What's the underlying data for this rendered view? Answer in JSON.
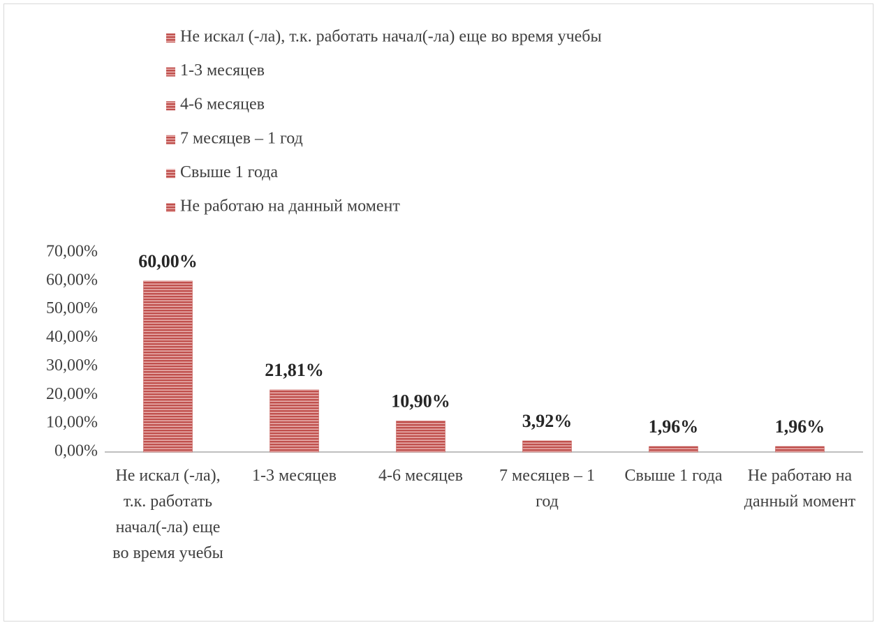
{
  "chart_data": {
    "type": "bar",
    "categories": [
      "Не искал (-ла), т.к. работать начал(-ла) еще во время учебы",
      "1-3 месяцев",
      "4-6 месяцев",
      "7 месяцев – 1 год",
      "Свыше 1 года",
      "Не работаю на данный момент"
    ],
    "values": [
      60,
      21.81,
      10.9,
      3.92,
      1.96,
      1.96
    ],
    "value_labels": [
      "60,00%",
      "21,81%",
      "10,90%",
      "3,92%",
      "1,96%",
      "1,96%"
    ],
    "color": "#c0504d",
    "ylim": [
      0,
      70
    ],
    "yticks": [
      {
        "value": 0,
        "label": "0,00%"
      },
      {
        "value": 10,
        "label": "10,00%"
      },
      {
        "value": 20,
        "label": "20,00%"
      },
      {
        "value": 30,
        "label": "30,00%"
      },
      {
        "value": 40,
        "label": "40,00%"
      },
      {
        "value": 50,
        "label": "50,00%"
      },
      {
        "value": 60,
        "label": "60,00%"
      },
      {
        "value": 70,
        "label": "70,00%"
      }
    ],
    "legend": "top"
  }
}
